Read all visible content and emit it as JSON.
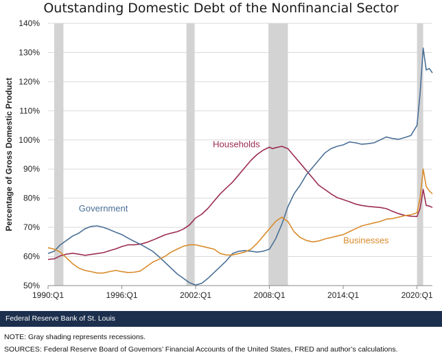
{
  "chart_data": {
    "type": "line",
    "title": "Outstanding Domestic Debt of the Nonfinancial Sector",
    "ylabel": "Percentage of Gross Domestic Product",
    "xlabel": "",
    "x_range": [
      1990.0,
      2021.25
    ],
    "ylim": [
      50,
      140
    ],
    "yticks": [
      "50%",
      "60%",
      "70%",
      "80%",
      "90%",
      "100%",
      "110%",
      "120%",
      "130%",
      "140%"
    ],
    "xticks": [
      {
        "label": "1990:Q1",
        "x": 1990.0
      },
      {
        "label": "1996:Q1",
        "x": 1996.0
      },
      {
        "label": "2002:Q1",
        "x": 2002.0
      },
      {
        "label": "2008:Q1",
        "x": 2008.0
      },
      {
        "label": "2014:Q1",
        "x": 2014.0
      },
      {
        "label": "2020:Q1",
        "x": 2020.0
      }
    ],
    "grid": "horizontal",
    "recessions": [
      {
        "start": 1990.5,
        "end": 1991.25
      },
      {
        "start": 2001.25,
        "end": 2001.92
      },
      {
        "start": 2007.92,
        "end": 2009.5
      },
      {
        "start": 2020.0,
        "end": 2020.5
      }
    ],
    "series": [
      {
        "name": "Households",
        "color": "#9b2c4e",
        "points": [
          [
            1990.0,
            59
          ],
          [
            1990.5,
            59.2
          ],
          [
            1991.0,
            60.2
          ],
          [
            1991.5,
            60.8
          ],
          [
            1992.0,
            61.1
          ],
          [
            1992.5,
            60.8
          ],
          [
            1993.0,
            60.4
          ],
          [
            1993.5,
            60.7
          ],
          [
            1994.0,
            61.0
          ],
          [
            1994.5,
            61.3
          ],
          [
            1995.0,
            62.0
          ],
          [
            1995.5,
            62.6
          ],
          [
            1996.0,
            63.4
          ],
          [
            1996.5,
            64.0
          ],
          [
            1997.0,
            64.0
          ],
          [
            1997.5,
            64.2
          ],
          [
            1998.0,
            64.8
          ],
          [
            1998.5,
            65.6
          ],
          [
            1999.0,
            66.5
          ],
          [
            1999.5,
            67.4
          ],
          [
            2000.0,
            68.0
          ],
          [
            2000.5,
            68.5
          ],
          [
            2001.0,
            69.4
          ],
          [
            2001.5,
            70.8
          ],
          [
            2002.0,
            73.2
          ],
          [
            2002.5,
            74.5
          ],
          [
            2003.0,
            76.5
          ],
          [
            2003.5,
            79.0
          ],
          [
            2004.0,
            81.5
          ],
          [
            2004.5,
            83.5
          ],
          [
            2005.0,
            85.5
          ],
          [
            2005.5,
            88.0
          ],
          [
            2006.0,
            90.5
          ],
          [
            2006.5,
            93.0
          ],
          [
            2007.0,
            95.0
          ],
          [
            2007.5,
            96.5
          ],
          [
            2008.0,
            97.5
          ],
          [
            2008.25,
            97.0
          ],
          [
            2008.5,
            97.3
          ],
          [
            2009.0,
            97.8
          ],
          [
            2009.5,
            97.0
          ],
          [
            2010.0,
            94.5
          ],
          [
            2010.5,
            92.0
          ],
          [
            2011.0,
            89.5
          ],
          [
            2011.5,
            87.0
          ],
          [
            2012.0,
            84.5
          ],
          [
            2012.5,
            83.0
          ],
          [
            2013.0,
            81.5
          ],
          [
            2013.5,
            80.2
          ],
          [
            2014.0,
            79.5
          ],
          [
            2014.5,
            78.8
          ],
          [
            2015.0,
            78.0
          ],
          [
            2015.5,
            77.5
          ],
          [
            2016.0,
            77.2
          ],
          [
            2016.5,
            77.0
          ],
          [
            2017.0,
            76.8
          ],
          [
            2017.5,
            76.4
          ],
          [
            2018.0,
            75.5
          ],
          [
            2018.5,
            74.7
          ],
          [
            2019.0,
            74.1
          ],
          [
            2019.5,
            73.8
          ],
          [
            2020.0,
            73.7
          ],
          [
            2020.25,
            76.5
          ],
          [
            2020.5,
            83.0
          ],
          [
            2020.75,
            77.5
          ],
          [
            2021.0,
            77.3
          ],
          [
            2021.25,
            76.8
          ]
        ]
      },
      {
        "name": "Government",
        "color": "#4a6f96",
        "points": [
          [
            1990.0,
            61
          ],
          [
            1990.5,
            61.8
          ],
          [
            1991.0,
            64.0
          ],
          [
            1991.5,
            65.5
          ],
          [
            1992.0,
            67.0
          ],
          [
            1992.5,
            68.0
          ],
          [
            1993.0,
            69.5
          ],
          [
            1993.5,
            70.3
          ],
          [
            1994.0,
            70.5
          ],
          [
            1994.5,
            70.0
          ],
          [
            1995.0,
            69.2
          ],
          [
            1995.5,
            68.3
          ],
          [
            1996.0,
            67.5
          ],
          [
            1996.5,
            66.3
          ],
          [
            1997.0,
            65.2
          ],
          [
            1997.5,
            64.2
          ],
          [
            1998.0,
            63.0
          ],
          [
            1998.5,
            61.8
          ],
          [
            1999.0,
            60.0
          ],
          [
            1999.5,
            58.0
          ],
          [
            2000.0,
            56.0
          ],
          [
            2000.5,
            54.0
          ],
          [
            2001.0,
            52.5
          ],
          [
            2001.5,
            51.0
          ],
          [
            2002.0,
            50.2
          ],
          [
            2002.5,
            50.8
          ],
          [
            2003.0,
            52.5
          ],
          [
            2003.5,
            54.5
          ],
          [
            2004.0,
            56.5
          ],
          [
            2004.5,
            58.5
          ],
          [
            2005.0,
            61.0
          ],
          [
            2005.5,
            61.8
          ],
          [
            2006.0,
            62.0
          ],
          [
            2006.5,
            61.8
          ],
          [
            2007.0,
            61.5
          ],
          [
            2007.5,
            61.8
          ],
          [
            2008.0,
            62.5
          ],
          [
            2008.5,
            66.0
          ],
          [
            2009.0,
            71.0
          ],
          [
            2009.5,
            77.0
          ],
          [
            2010.0,
            81.5
          ],
          [
            2010.5,
            84.5
          ],
          [
            2011.0,
            88.0
          ],
          [
            2011.5,
            90.5
          ],
          [
            2012.0,
            93.0
          ],
          [
            2012.5,
            95.5
          ],
          [
            2013.0,
            97.0
          ],
          [
            2013.5,
            97.8
          ],
          [
            2014.0,
            98.3
          ],
          [
            2014.5,
            99.3
          ],
          [
            2015.0,
            99.0
          ],
          [
            2015.5,
            98.5
          ],
          [
            2016.0,
            98.7
          ],
          [
            2016.5,
            99.0
          ],
          [
            2017.0,
            100.0
          ],
          [
            2017.5,
            101.0
          ],
          [
            2018.0,
            100.5
          ],
          [
            2018.5,
            100.2
          ],
          [
            2019.0,
            100.8
          ],
          [
            2019.5,
            101.5
          ],
          [
            2020.0,
            105.0
          ],
          [
            2020.25,
            116.0
          ],
          [
            2020.5,
            131.5
          ],
          [
            2020.75,
            124.0
          ],
          [
            2021.0,
            124.5
          ],
          [
            2021.25,
            123.0
          ]
        ]
      },
      {
        "name": "Businesses",
        "color": "#d98b2b",
        "points": [
          [
            1990.0,
            63
          ],
          [
            1990.5,
            62.5
          ],
          [
            1991.0,
            61.5
          ],
          [
            1991.5,
            59.5
          ],
          [
            1992.0,
            57.5
          ],
          [
            1992.5,
            56.0
          ],
          [
            1993.0,
            55.2
          ],
          [
            1993.5,
            54.8
          ],
          [
            1994.0,
            54.3
          ],
          [
            1994.5,
            54.3
          ],
          [
            1995.0,
            54.8
          ],
          [
            1995.5,
            55.2
          ],
          [
            1996.0,
            54.8
          ],
          [
            1996.5,
            54.5
          ],
          [
            1997.0,
            54.6
          ],
          [
            1997.5,
            55.0
          ],
          [
            1998.0,
            56.5
          ],
          [
            1998.5,
            58.0
          ],
          [
            1999.0,
            59.0
          ],
          [
            1999.5,
            60.0
          ],
          [
            2000.0,
            61.5
          ],
          [
            2000.5,
            62.5
          ],
          [
            2001.0,
            63.5
          ],
          [
            2001.5,
            64.0
          ],
          [
            2002.0,
            64.0
          ],
          [
            2002.5,
            63.5
          ],
          [
            2003.0,
            63.0
          ],
          [
            2003.5,
            62.5
          ],
          [
            2004.0,
            61.0
          ],
          [
            2004.5,
            60.5
          ],
          [
            2005.0,
            60.5
          ],
          [
            2005.5,
            61.0
          ],
          [
            2006.0,
            61.5
          ],
          [
            2006.5,
            62.5
          ],
          [
            2007.0,
            64.5
          ],
          [
            2007.5,
            67.0
          ],
          [
            2008.0,
            69.5
          ],
          [
            2008.5,
            72.0
          ],
          [
            2009.0,
            73.5
          ],
          [
            2009.5,
            72.0
          ],
          [
            2010.0,
            68.5
          ],
          [
            2010.5,
            66.5
          ],
          [
            2011.0,
            65.5
          ],
          [
            2011.5,
            65.0
          ],
          [
            2012.0,
            65.3
          ],
          [
            2012.5,
            66.0
          ],
          [
            2013.0,
            66.5
          ],
          [
            2013.5,
            67.0
          ],
          [
            2014.0,
            67.5
          ],
          [
            2014.5,
            68.5
          ],
          [
            2015.0,
            69.5
          ],
          [
            2015.5,
            70.5
          ],
          [
            2016.0,
            71.0
          ],
          [
            2016.5,
            71.5
          ],
          [
            2017.0,
            72.0
          ],
          [
            2017.5,
            72.8
          ],
          [
            2018.0,
            73.0
          ],
          [
            2018.5,
            73.5
          ],
          [
            2019.0,
            74.0
          ],
          [
            2019.5,
            74.3
          ],
          [
            2020.0,
            75.0
          ],
          [
            2020.25,
            80.0
          ],
          [
            2020.5,
            90.0
          ],
          [
            2020.75,
            84.0
          ],
          [
            2021.0,
            82.5
          ],
          [
            2021.25,
            81.5
          ]
        ]
      }
    ],
    "annotations": [
      {
        "text": "Households",
        "series": "Households"
      },
      {
        "text": "Government",
        "series": "Government"
      },
      {
        "text": "Businesses",
        "series": "Businesses"
      }
    ]
  },
  "footer": {
    "source_bar": "Federal Reserve Bank of St. Louis",
    "note": "NOTE: Gray shading represents recessions.",
    "sources": "SOURCES: Federal Reserve Board of Governors’ Financial Accounts of the United States, FRED and author’s calculations."
  }
}
